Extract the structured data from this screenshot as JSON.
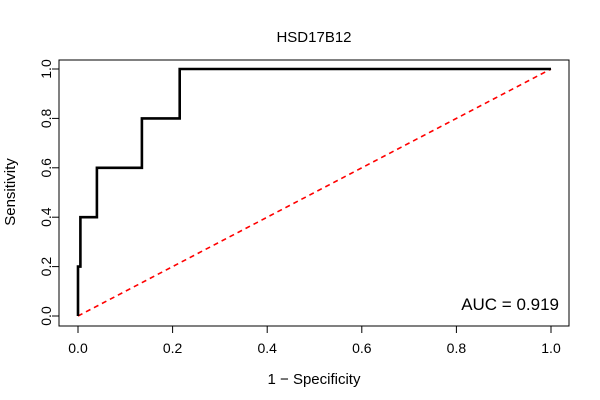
{
  "chart_data": {
    "type": "line",
    "title": "HSD17B12",
    "xlabel": "1 − Specificity",
    "ylabel": "Sensitivity",
    "xlim": [
      0,
      1
    ],
    "ylim": [
      0,
      1
    ],
    "x_ticks": [
      0.0,
      0.2,
      0.4,
      0.6,
      0.8,
      1.0
    ],
    "y_ticks": [
      0.0,
      0.2,
      0.4,
      0.6,
      0.8,
      1.0
    ],
    "x_tick_labels": [
      "0.0",
      "0.2",
      "0.4",
      "0.6",
      "0.8",
      "1.0"
    ],
    "y_tick_labels": [
      "0.0",
      "0.2",
      "0.4",
      "0.6",
      "0.8",
      "1.0"
    ],
    "grid": false,
    "series": [
      {
        "color": "#000000",
        "style": "solid",
        "x": [
          0.0,
          0.0,
          0.005,
          0.005,
          0.01,
          0.01,
          0.04,
          0.04,
          0.135,
          0.135,
          0.215,
          0.215,
          1.0
        ],
        "y": [
          0.0,
          0.2,
          0.2,
          0.4,
          0.4,
          0.4,
          0.4,
          0.6,
          0.6,
          0.8,
          0.8,
          1.0,
          1.0
        ]
      },
      {
        "color": "#ff0000",
        "style": "dashed",
        "x": [
          0.0,
          1.0
        ],
        "y": [
          0.0,
          1.0
        ]
      }
    ],
    "annotation": "AUC = 0.919"
  }
}
